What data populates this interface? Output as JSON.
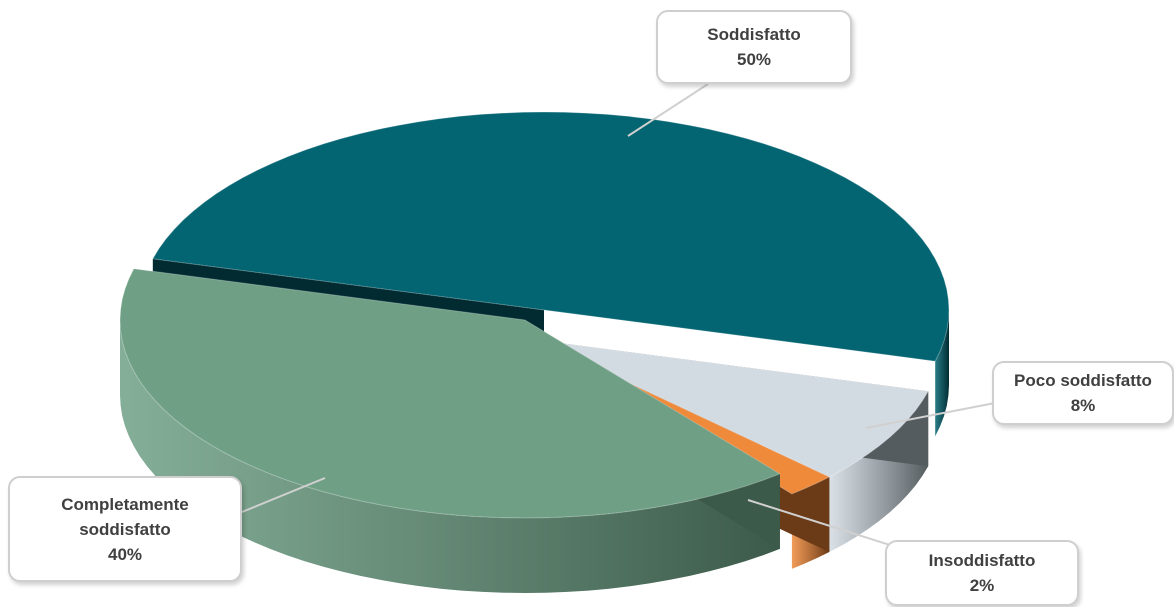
{
  "chart_data": {
    "type": "pie",
    "style": "3d-exploded",
    "title": "",
    "legend": "none",
    "slices": [
      {
        "label": "Soddisfatto",
        "value": 50,
        "value_label": "50%",
        "color": "#036472",
        "side_color": "#012b31"
      },
      {
        "label": "Poco soddisfatto",
        "value": 8,
        "value_label": "8%",
        "color": "#d3dbe2",
        "side_color": "#555c60"
      },
      {
        "label": "Insoddisfatto",
        "value": 2,
        "value_label": "2%",
        "color": "#ef8a3b",
        "side_color": "#6b3a16"
      },
      {
        "label": "Completamente soddisfatto",
        "label_lines": [
          "Completamente",
          "soddisfatto"
        ],
        "value": 40,
        "value_label": "40%",
        "color": "#6fa086",
        "side_color": "#3c5a4a"
      }
    ]
  }
}
